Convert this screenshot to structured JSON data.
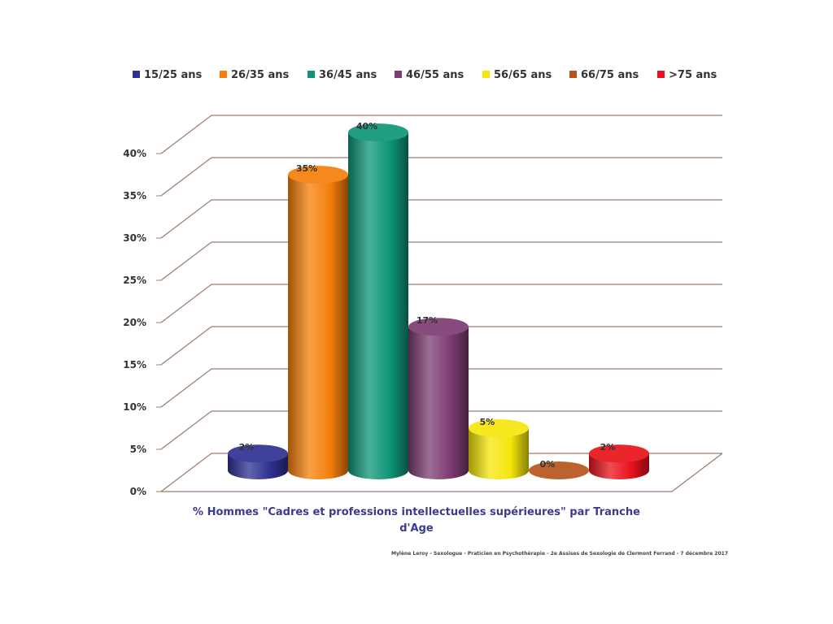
{
  "chart_data": {
    "type": "bar",
    "categories": [
      "15/25 ans",
      "26/35 ans",
      "36/45 ans",
      "46/55 ans",
      "56/65 ans",
      "66/75 ans",
      ">75 ans"
    ],
    "values": [
      2,
      35,
      40,
      17,
      5,
      0,
      2
    ],
    "data_labels": [
      "2%",
      "35%",
      "40%",
      "17%",
      "5%",
      "0%",
      "2%"
    ],
    "colors": [
      "#2e3192",
      "#f57f0a",
      "#0e9577",
      "#7d3c72",
      "#f5e60a",
      "#b5541c",
      "#e8131b"
    ],
    "y_ticks": [
      "0%",
      "5%",
      "10%",
      "15%",
      "20%",
      "25%",
      "30%",
      "35%",
      "40%"
    ],
    "ylim": [
      0,
      40
    ],
    "grid": true,
    "legend_position": "top",
    "caption_line1": "% Hommes \"Cadres et professions intellectuelles supérieures\" par Tranche",
    "caption_line2": "d'Age",
    "credit": "Mylène Leroy - Sexologue - Praticien en Psychothérapie - 2e Assises de Sexologie de Clermont Ferrand - 7 décembre 2017"
  }
}
